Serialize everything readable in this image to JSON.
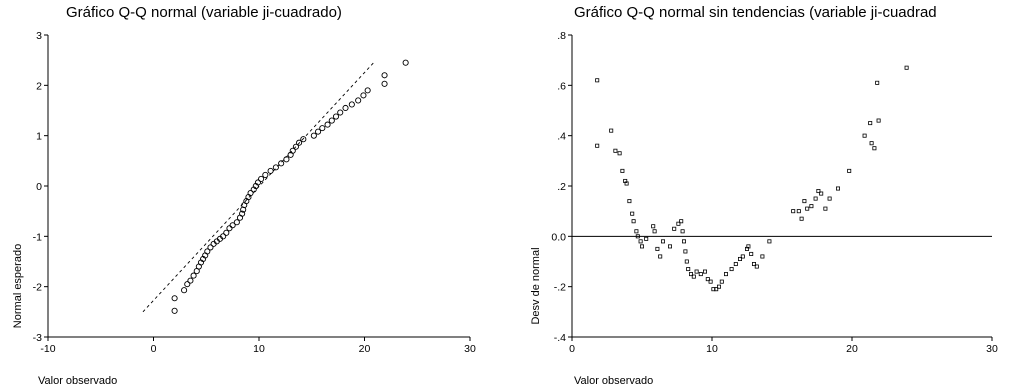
{
  "chart_data": [
    {
      "type": "scatter",
      "title": "Gráfico Q-Q normal (variable ji-cuadrado)",
      "xlabel": "Valor observado",
      "ylabel": "Normal esperado",
      "xlim": [
        -10,
        30
      ],
      "ylim": [
        -3,
        3
      ],
      "x_ticks": [
        "-10",
        "0",
        "10",
        "20",
        "30"
      ],
      "y_ticks": [
        "-3",
        "-2",
        "-1",
        "0",
        "1",
        "2",
        "3"
      ],
      "reference_line": {
        "style": "dashed",
        "from": [
          -1.0,
          -2.5
        ],
        "to": [
          21.0,
          2.48
        ]
      },
      "series": [
        {
          "marker": "open-circle",
          "points": [
            [
              2.0,
              -2.48
            ],
            [
              2.0,
              -2.23
            ],
            [
              2.9,
              -2.07
            ],
            [
              3.2,
              -1.95
            ],
            [
              3.5,
              -1.88
            ],
            [
              3.8,
              -1.78
            ],
            [
              4.1,
              -1.69
            ],
            [
              4.3,
              -1.6
            ],
            [
              4.5,
              -1.52
            ],
            [
              4.7,
              -1.45
            ],
            [
              4.9,
              -1.38
            ],
            [
              5.1,
              -1.3
            ],
            [
              5.4,
              -1.22
            ],
            [
              5.7,
              -1.15
            ],
            [
              6.0,
              -1.1
            ],
            [
              6.3,
              -1.05
            ],
            [
              6.6,
              -1.0
            ],
            [
              6.9,
              -0.93
            ],
            [
              7.2,
              -0.84
            ],
            [
              7.5,
              -0.78
            ],
            [
              7.9,
              -0.72
            ],
            [
              8.2,
              -0.63
            ],
            [
              8.4,
              -0.55
            ],
            [
              8.5,
              -0.47
            ],
            [
              8.6,
              -0.38
            ],
            [
              8.8,
              -0.3
            ],
            [
              9.0,
              -0.22
            ],
            [
              9.2,
              -0.14
            ],
            [
              9.5,
              -0.07
            ],
            [
              9.7,
              0.0
            ],
            [
              9.9,
              0.07
            ],
            [
              10.2,
              0.14
            ],
            [
              10.6,
              0.22
            ],
            [
              11.1,
              0.3
            ],
            [
              11.6,
              0.37
            ],
            [
              12.1,
              0.45
            ],
            [
              12.6,
              0.53
            ],
            [
              13.0,
              0.62
            ],
            [
              13.2,
              0.7
            ],
            [
              13.5,
              0.78
            ],
            [
              13.8,
              0.86
            ],
            [
              14.2,
              0.93
            ],
            [
              15.2,
              1.0
            ],
            [
              15.6,
              1.08
            ],
            [
              16.0,
              1.15
            ],
            [
              16.5,
              1.22
            ],
            [
              16.9,
              1.3
            ],
            [
              17.3,
              1.38
            ],
            [
              17.7,
              1.46
            ],
            [
              18.2,
              1.55
            ],
            [
              18.8,
              1.62
            ],
            [
              19.4,
              1.7
            ],
            [
              19.9,
              1.8
            ],
            [
              20.3,
              1.9
            ],
            [
              21.9,
              2.03
            ],
            [
              21.9,
              2.2
            ],
            [
              23.9,
              2.45
            ]
          ]
        }
      ]
    },
    {
      "type": "scatter",
      "title": "Gráfico Q-Q normal sin tendencias (variable ji-cuadrad",
      "xlabel": "Valor observado",
      "ylabel": "Desv de normal",
      "xlim": [
        0,
        30
      ],
      "ylim": [
        -0.4,
        0.8
      ],
      "x_ticks": [
        "0",
        "10",
        "20",
        "30"
      ],
      "y_ticks": [
        "-.4",
        "-.2",
        "0.0",
        ".2",
        ".4",
        ".6",
        ".8"
      ],
      "reference_line": {
        "style": "solid",
        "y": 0.0
      },
      "series": [
        {
          "marker": "small-square",
          "points": [
            [
              1.8,
              0.62
            ],
            [
              1.8,
              0.36
            ],
            [
              2.8,
              0.42
            ],
            [
              3.1,
              0.34
            ],
            [
              3.4,
              0.33
            ],
            [
              3.6,
              0.26
            ],
            [
              3.8,
              0.22
            ],
            [
              3.9,
              0.21
            ],
            [
              4.1,
              0.14
            ],
            [
              4.3,
              0.09
            ],
            [
              4.4,
              0.06
            ],
            [
              4.6,
              0.02
            ],
            [
              4.7,
              0.0
            ],
            [
              4.9,
              -0.02
            ],
            [
              5.0,
              -0.04
            ],
            [
              5.3,
              -0.01
            ],
            [
              5.8,
              0.04
            ],
            [
              5.9,
              0.02
            ],
            [
              6.1,
              -0.05
            ],
            [
              6.3,
              -0.08
            ],
            [
              6.5,
              -0.02
            ],
            [
              7.0,
              -0.04
            ],
            [
              7.3,
              0.03
            ],
            [
              7.6,
              0.05
            ],
            [
              7.8,
              0.06
            ],
            [
              7.9,
              0.02
            ],
            [
              8.0,
              -0.02
            ],
            [
              8.1,
              -0.06
            ],
            [
              8.2,
              -0.1
            ],
            [
              8.3,
              -0.13
            ],
            [
              8.5,
              -0.15
            ],
            [
              8.7,
              -0.16
            ],
            [
              8.9,
              -0.14
            ],
            [
              9.2,
              -0.15
            ],
            [
              9.5,
              -0.14
            ],
            [
              9.7,
              -0.17
            ],
            [
              9.9,
              -0.18
            ],
            [
              10.1,
              -0.21
            ],
            [
              10.3,
              -0.21
            ],
            [
              10.5,
              -0.2
            ],
            [
              10.7,
              -0.18
            ],
            [
              11.0,
              -0.15
            ],
            [
              11.4,
              -0.13
            ],
            [
              11.7,
              -0.11
            ],
            [
              12.0,
              -0.09
            ],
            [
              12.2,
              -0.08
            ],
            [
              12.5,
              -0.05
            ],
            [
              12.6,
              -0.04
            ],
            [
              12.8,
              -0.07
            ],
            [
              13.0,
              -0.11
            ],
            [
              13.2,
              -0.12
            ],
            [
              13.6,
              -0.08
            ],
            [
              14.1,
              -0.02
            ],
            [
              15.8,
              0.1
            ],
            [
              16.2,
              0.1
            ],
            [
              16.4,
              0.07
            ],
            [
              16.6,
              0.14
            ],
            [
              16.8,
              0.11
            ],
            [
              17.1,
              0.12
            ],
            [
              17.4,
              0.15
            ],
            [
              17.6,
              0.18
            ],
            [
              17.8,
              0.17
            ],
            [
              18.1,
              0.11
            ],
            [
              18.4,
              0.15
            ],
            [
              19.0,
              0.19
            ],
            [
              19.8,
              0.26
            ],
            [
              20.9,
              0.4
            ],
            [
              21.3,
              0.45
            ],
            [
              21.4,
              0.37
            ],
            [
              21.6,
              0.35
            ],
            [
              21.8,
              0.61
            ],
            [
              21.9,
              0.46
            ],
            [
              23.9,
              0.67
            ]
          ]
        }
      ]
    }
  ]
}
